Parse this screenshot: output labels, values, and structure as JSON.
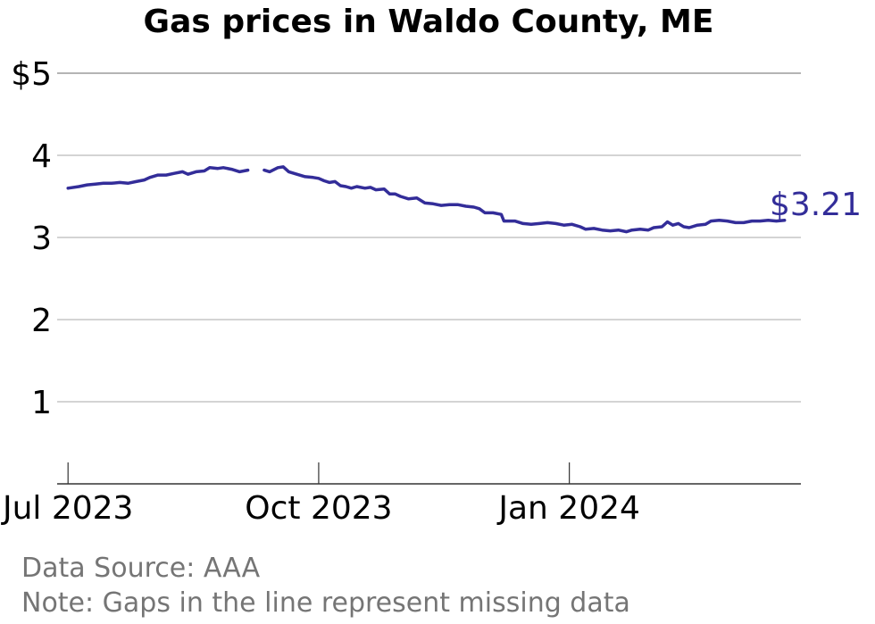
{
  "chart_data": {
    "type": "line",
    "title": "Gas prices in Waldo County, ME",
    "xlabel": "",
    "ylabel": "",
    "ylim": [
      0,
      5
    ],
    "y_ticks": [
      {
        "value": 5,
        "label": "$5"
      },
      {
        "value": 4,
        "label": "4"
      },
      {
        "value": 3,
        "label": "3"
      },
      {
        "value": 2,
        "label": "2"
      },
      {
        "value": 1,
        "label": "1"
      }
    ],
    "xlim": [
      "2023-06-27",
      "2024-03-26"
    ],
    "x_ticks": [
      {
        "date": "2023-07-01",
        "label": "Jul 2023"
      },
      {
        "date": "2023-10-01",
        "label": "Oct 2023"
      },
      {
        "date": "2024-01-01",
        "label": "Jan 2024"
      }
    ],
    "grid": true,
    "series": [
      {
        "color": "#332d99",
        "end_label": "$3.21",
        "segments": [
          [
            [
              "2023-07-01",
              3.6
            ],
            [
              "2023-07-05",
              3.62
            ],
            [
              "2023-07-08",
              3.64
            ],
            [
              "2023-07-11",
              3.65
            ],
            [
              "2023-07-14",
              3.66
            ],
            [
              "2023-07-17",
              3.66
            ],
            [
              "2023-07-20",
              3.67
            ],
            [
              "2023-07-23",
              3.66
            ],
            [
              "2023-07-26",
              3.68
            ],
            [
              "2023-07-29",
              3.7
            ],
            [
              "2023-07-31",
              3.73
            ],
            [
              "2023-08-03",
              3.76
            ],
            [
              "2023-08-06",
              3.76
            ],
            [
              "2023-08-09",
              3.78
            ],
            [
              "2023-08-12",
              3.8
            ],
            [
              "2023-08-14",
              3.77
            ],
            [
              "2023-08-17",
              3.8
            ],
            [
              "2023-08-20",
              3.81
            ],
            [
              "2023-08-22",
              3.85
            ],
            [
              "2023-08-25",
              3.84
            ],
            [
              "2023-08-27",
              3.85
            ],
            [
              "2023-08-30",
              3.83
            ],
            [
              "2023-09-02",
              3.8
            ],
            [
              "2023-09-05",
              3.82
            ]
          ],
          [
            [
              "2023-09-11",
              3.82
            ],
            [
              "2023-09-13",
              3.8
            ],
            [
              "2023-09-16",
              3.85
            ],
            [
              "2023-09-18",
              3.86
            ],
            [
              "2023-09-20",
              3.8
            ],
            [
              "2023-09-23",
              3.77
            ],
            [
              "2023-09-26",
              3.74
            ],
            [
              "2023-09-29",
              3.73
            ],
            [
              "2023-10-01",
              3.72
            ],
            [
              "2023-10-03",
              3.69
            ],
            [
              "2023-10-05",
              3.67
            ],
            [
              "2023-10-07",
              3.68
            ],
            [
              "2023-10-09",
              3.63
            ],
            [
              "2023-10-11",
              3.62
            ],
            [
              "2023-10-13",
              3.6
            ],
            [
              "2023-10-15",
              3.62
            ],
            [
              "2023-10-18",
              3.6
            ],
            [
              "2023-10-20",
              3.61
            ],
            [
              "2023-10-22",
              3.58
            ],
            [
              "2023-10-25",
              3.59
            ],
            [
              "2023-10-27",
              3.53
            ],
            [
              "2023-10-29",
              3.53
            ],
            [
              "2023-10-31",
              3.5
            ],
            [
              "2023-11-03",
              3.47
            ],
            [
              "2023-11-06",
              3.48
            ],
            [
              "2023-11-09",
              3.42
            ],
            [
              "2023-11-12",
              3.41
            ],
            [
              "2023-11-15",
              3.39
            ],
            [
              "2023-11-18",
              3.4
            ],
            [
              "2023-11-21",
              3.4
            ],
            [
              "2023-11-24",
              3.38
            ],
            [
              "2023-11-27",
              3.37
            ],
            [
              "2023-11-29",
              3.35
            ],
            [
              "2023-12-01",
              3.3
            ],
            [
              "2023-12-04",
              3.3
            ],
            [
              "2023-12-07",
              3.28
            ],
            [
              "2023-12-08",
              3.2
            ],
            [
              "2023-12-12",
              3.2
            ],
            [
              "2023-12-15",
              3.17
            ],
            [
              "2023-12-18",
              3.16
            ],
            [
              "2023-12-21",
              3.17
            ],
            [
              "2023-12-24",
              3.18
            ],
            [
              "2023-12-27",
              3.17
            ],
            [
              "2023-12-30",
              3.15
            ],
            [
              "2024-01-02",
              3.16
            ],
            [
              "2024-01-05",
              3.13
            ],
            [
              "2024-01-07",
              3.1
            ],
            [
              "2024-01-10",
              3.11
            ],
            [
              "2024-01-13",
              3.09
            ],
            [
              "2024-01-16",
              3.08
            ],
            [
              "2024-01-19",
              3.09
            ],
            [
              "2024-01-22",
              3.07
            ],
            [
              "2024-01-24",
              3.09
            ],
            [
              "2024-01-27",
              3.1
            ],
            [
              "2024-01-30",
              3.09
            ],
            [
              "2024-02-01",
              3.12
            ],
            [
              "2024-02-04",
              3.13
            ],
            [
              "2024-02-06",
              3.19
            ],
            [
              "2024-02-08",
              3.15
            ],
            [
              "2024-02-10",
              3.17
            ],
            [
              "2024-02-12",
              3.13
            ],
            [
              "2024-02-14",
              3.12
            ],
            [
              "2024-02-17",
              3.15
            ],
            [
              "2024-02-20",
              3.16
            ],
            [
              "2024-02-22",
              3.2
            ],
            [
              "2024-02-25",
              3.21
            ],
            [
              "2024-02-28",
              3.2
            ],
            [
              "2024-03-02",
              3.18
            ],
            [
              "2024-03-05",
              3.18
            ],
            [
              "2024-03-08",
              3.2
            ],
            [
              "2024-03-11",
              3.2
            ],
            [
              "2024-03-14",
              3.21
            ],
            [
              "2024-03-17",
              3.2
            ],
            [
              "2024-03-20",
              3.21
            ]
          ]
        ]
      }
    ]
  },
  "notes": {
    "source": "Data Source: AAA",
    "gaps": "Note: Gaps in the line represent missing data"
  }
}
